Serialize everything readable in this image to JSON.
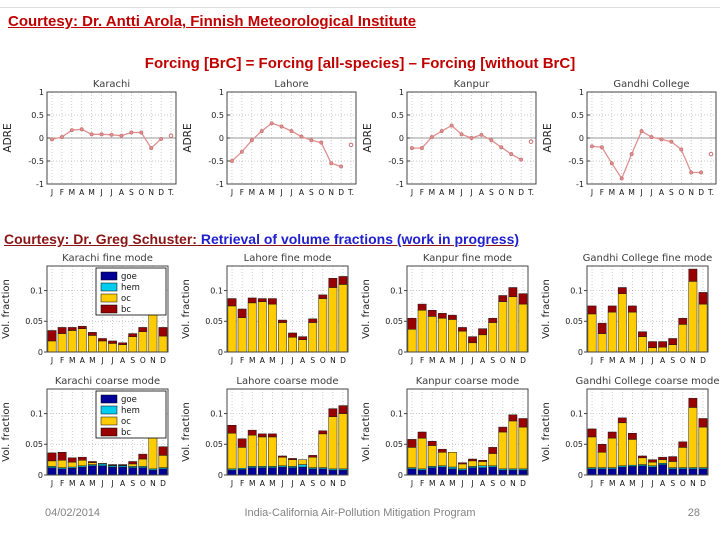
{
  "slide": {
    "header1": "Courtesy: Dr. Antti Arola, Finnish Meteorological Institute",
    "subtitle": "Forcing [BrC] = Forcing [all-species] – Forcing [without BrC]",
    "header2_red": "Courtesy: Dr. Greg Schuster:",
    "header2_blue": " Retrieval of volume fractions (work in progress)",
    "footer_date": "04/02/2014",
    "footer_program": "India-California Air-Pollution Mitigation Program",
    "footer_page": "28"
  },
  "colors": {
    "goe": "#000099",
    "hem": "#00ccee",
    "oc": "#ffcc00",
    "bc": "#990000",
    "line": "#e09090",
    "marker_edge": "#c87070",
    "grid": "#b5b5b5",
    "axis": "#444444",
    "zero_line": "#999999",
    "tick_text": "#222222",
    "title_text": "#3c3c3c"
  },
  "chart_data": [
    {
      "type": "line",
      "name": "karachi-adre",
      "title": "Karachi",
      "ylabel": "ADRE",
      "x_ticklabels": [
        "J",
        "F",
        "M",
        "A",
        "M",
        "J",
        "J",
        "A",
        "S",
        "O",
        "N",
        "D",
        "T."
      ],
      "ylim": [
        -1,
        1
      ],
      "yticks": [
        1,
        0.5,
        0,
        -0.5,
        -1
      ],
      "grid": true,
      "monthly_values": [
        -0.03,
        0.02,
        0.17,
        0.19,
        0.08,
        0.08,
        0.07,
        0.05,
        0.12,
        0.12,
        -0.22,
        -0.02
      ],
      "total_value": 0.05
    },
    {
      "type": "line",
      "name": "lahore-adre",
      "title": "Lahore",
      "ylabel": "ADRE",
      "x_ticklabels": [
        "J",
        "F",
        "M",
        "A",
        "M",
        "J",
        "J",
        "A",
        "S",
        "O",
        "N",
        "D",
        "T."
      ],
      "ylim": [
        -1,
        1
      ],
      "yticks": [
        1,
        0.5,
        0,
        -0.5,
        -1
      ],
      "grid": true,
      "monthly_values": [
        -0.5,
        -0.3,
        -0.05,
        0.15,
        0.32,
        0.25,
        0.15,
        0.03,
        -0.05,
        -0.1,
        -0.55,
        -0.62
      ],
      "total_value": -0.15
    },
    {
      "type": "line",
      "name": "kanpur-adre",
      "title": "Kanpur",
      "ylabel": "ADRE",
      "x_ticklabels": [
        "J",
        "F",
        "M",
        "A",
        "M",
        "J",
        "J",
        "A",
        "S",
        "O",
        "N",
        "D",
        "T."
      ],
      "ylim": [
        -1,
        1
      ],
      "yticks": [
        1,
        0.5,
        0,
        -0.5,
        -1
      ],
      "grid": true,
      "monthly_values": [
        -0.22,
        -0.22,
        0.02,
        0.15,
        0.27,
        0.08,
        0.0,
        0.07,
        -0.05,
        -0.2,
        -0.35,
        -0.47
      ],
      "total_value": -0.08
    },
    {
      "type": "line",
      "name": "gandhi-college-adre",
      "title": "Gandhi College",
      "ylabel": "ADRE",
      "x_ticklabels": [
        "J",
        "F",
        "M",
        "A",
        "M",
        "J",
        "J",
        "A",
        "S",
        "O",
        "N",
        "D",
        "T."
      ],
      "ylim": [
        -1,
        1
      ],
      "yticks": [
        1,
        0.5,
        0,
        -0.5,
        -1
      ],
      "grid": true,
      "monthly_values": [
        -0.18,
        -0.2,
        -0.55,
        -0.88,
        -0.35,
        0.15,
        0.02,
        -0.03,
        -0.08,
        -0.25,
        -0.75,
        -0.75
      ],
      "total_value": -0.35
    },
    {
      "type": "stacked-bar",
      "name": "karachi-fine-mode",
      "title": "Karachi fine mode",
      "ylabel": "Vol. fraction",
      "categories": [
        "J",
        "F",
        "M",
        "A",
        "M",
        "J",
        "J",
        "A",
        "S",
        "O",
        "N",
        "D"
      ],
      "ylim": [
        0,
        0.14
      ],
      "yticks": [
        0,
        0.05,
        0.1
      ],
      "grid": true,
      "legend": [
        "goe",
        "hem",
        "oc",
        "bc"
      ],
      "show_legend": true,
      "series": {
        "goe": [
          0,
          0,
          0,
          0,
          0,
          0,
          0,
          0,
          0,
          0,
          0,
          0
        ],
        "hem": [
          0,
          0,
          0,
          0,
          0,
          0,
          0,
          0,
          0,
          0,
          0,
          0
        ],
        "oc": [
          0.018,
          0.03,
          0.035,
          0.038,
          0.027,
          0.018,
          0.014,
          0.012,
          0.025,
          0.033,
          0.078,
          0.026
        ],
        "bc": [
          0.017,
          0.01,
          0.005,
          0.004,
          0.005,
          0.004,
          0.004,
          0.003,
          0.005,
          0.007,
          0.01,
          0.014
        ]
      }
    },
    {
      "type": "stacked-bar",
      "name": "lahore-fine-mode",
      "title": "Lahore fine mode",
      "ylabel": "Vol. fraction",
      "categories": [
        "J",
        "F",
        "M",
        "A",
        "M",
        "J",
        "J",
        "A",
        "S",
        "O",
        "N",
        "D"
      ],
      "ylim": [
        0,
        0.14
      ],
      "yticks": [
        0,
        0.05,
        0.1
      ],
      "grid": true,
      "legend": [
        "goe",
        "hem",
        "oc",
        "bc"
      ],
      "show_legend": false,
      "series": {
        "goe": [
          0,
          0,
          0,
          0,
          0,
          0,
          0,
          0,
          0,
          0,
          0,
          0
        ],
        "hem": [
          0,
          0,
          0,
          0,
          0,
          0,
          0,
          0,
          0,
          0,
          0,
          0
        ],
        "oc": [
          0.075,
          0.056,
          0.08,
          0.082,
          0.078,
          0.048,
          0.024,
          0.02,
          0.048,
          0.087,
          0.105,
          0.11
        ],
        "bc": [
          0.012,
          0.014,
          0.008,
          0.005,
          0.009,
          0.004,
          0.007,
          0.005,
          0.006,
          0.006,
          0.015,
          0.013
        ]
      }
    },
    {
      "type": "stacked-bar",
      "name": "kanpur-fine-mode",
      "title": "Kanpur fine mode",
      "ylabel": "Vol. fraction",
      "categories": [
        "J",
        "F",
        "M",
        "A",
        "M",
        "J",
        "J",
        "A",
        "S",
        "O",
        "N",
        "D"
      ],
      "ylim": [
        0,
        0.14
      ],
      "yticks": [
        0,
        0.05,
        0.1
      ],
      "grid": true,
      "legend": [
        "goe",
        "hem",
        "oc",
        "bc"
      ],
      "show_legend": false,
      "series": {
        "goe": [
          0,
          0,
          0,
          0,
          0,
          0,
          0,
          0,
          0,
          0,
          0,
          0
        ],
        "hem": [
          0,
          0,
          0,
          0,
          0,
          0,
          0,
          0,
          0,
          0,
          0,
          0
        ],
        "oc": [
          0.037,
          0.068,
          0.058,
          0.055,
          0.053,
          0.034,
          0.015,
          0.028,
          0.048,
          0.082,
          0.09,
          0.078
        ],
        "bc": [
          0.018,
          0.01,
          0.01,
          0.008,
          0.007,
          0.006,
          0.01,
          0.01,
          0.007,
          0.01,
          0.015,
          0.017
        ]
      }
    },
    {
      "type": "stacked-bar",
      "name": "gandhi-college-fine-mode",
      "title": "Gandhi College fine mode",
      "ylabel": "Vol. fraction",
      "categories": [
        "J",
        "F",
        "M",
        "A",
        "M",
        "J",
        "J",
        "A",
        "S",
        "O",
        "N",
        "D"
      ],
      "ylim": [
        0,
        0.14
      ],
      "yticks": [
        0,
        0.05,
        0.1
      ],
      "grid": true,
      "legend": [
        "goe",
        "hem",
        "oc",
        "bc"
      ],
      "show_legend": false,
      "series": {
        "goe": [
          0,
          0,
          0,
          0,
          0,
          0,
          0,
          0,
          0,
          0,
          0,
          0
        ],
        "hem": [
          0,
          0,
          0,
          0,
          0,
          0,
          0,
          0,
          0,
          0,
          0,
          0
        ],
        "oc": [
          0.062,
          0.03,
          0.065,
          0.095,
          0.065,
          0.025,
          0.007,
          0.008,
          0.012,
          0.045,
          0.115,
          0.078
        ],
        "bc": [
          0.013,
          0.017,
          0.01,
          0.01,
          0.01,
          0.008,
          0.01,
          0.009,
          0.01,
          0.01,
          0.02,
          0.019
        ]
      }
    },
    {
      "type": "stacked-bar",
      "name": "karachi-coarse-mode",
      "title": "Karachi coarse mode",
      "ylabel": "Vol. fraction",
      "categories": [
        "J",
        "F",
        "M",
        "A",
        "M",
        "J",
        "J",
        "A",
        "S",
        "O",
        "N",
        "D"
      ],
      "ylim": [
        0,
        0.14
      ],
      "yticks": [
        0,
        0.05,
        0.1
      ],
      "grid": true,
      "legend": [
        "goe",
        "hem",
        "oc",
        "bc"
      ],
      "show_legend": true,
      "series": {
        "goe": [
          0.012,
          0.01,
          0.011,
          0.013,
          0.015,
          0.015,
          0.013,
          0.013,
          0.012,
          0.012,
          0.008,
          0.01
        ],
        "hem": [
          0.002,
          0.002,
          0.002,
          0.002,
          0.002,
          0.003,
          0.002,
          0.002,
          0.002,
          0.002,
          0.002,
          0.002
        ],
        "oc": [
          0.009,
          0.012,
          0.008,
          0.009,
          0.003,
          0.001,
          0.001,
          0.001,
          0.004,
          0.012,
          0.058,
          0.02
        ],
        "bc": [
          0.013,
          0.013,
          0.007,
          0.005,
          0.002,
          0.0,
          0.001,
          0.001,
          0.004,
          0.008,
          0.01,
          0.014
        ]
      }
    },
    {
      "type": "stacked-bar",
      "name": "lahore-coarse-mode",
      "title": "Lahore coarse mode",
      "ylabel": "Vol. fraction",
      "categories": [
        "J",
        "F",
        "M",
        "A",
        "M",
        "J",
        "J",
        "A",
        "S",
        "O",
        "N",
        "D"
      ],
      "ylim": [
        0,
        0.14
      ],
      "yticks": [
        0,
        0.05,
        0.1
      ],
      "grid": true,
      "legend": [
        "goe",
        "hem",
        "oc",
        "bc"
      ],
      "show_legend": false,
      "series": {
        "goe": [
          0.008,
          0.009,
          0.012,
          0.012,
          0.012,
          0.013,
          0.012,
          0.013,
          0.01,
          0.01,
          0.008,
          0.008
        ],
        "hem": [
          0.002,
          0.002,
          0.002,
          0.002,
          0.002,
          0.002,
          0.002,
          0.004,
          0.002,
          0.002,
          0.002,
          0.002
        ],
        "oc": [
          0.058,
          0.034,
          0.051,
          0.048,
          0.048,
          0.014,
          0.011,
          0.008,
          0.017,
          0.055,
          0.085,
          0.09
        ],
        "bc": [
          0.013,
          0.014,
          0.008,
          0.005,
          0.005,
          0.002,
          0.002,
          0.0,
          0.003,
          0.005,
          0.013,
          0.013
        ]
      }
    },
    {
      "type": "stacked-bar",
      "name": "kanpur-coarse-mode",
      "title": "Kanpur coarse mode",
      "ylabel": "Vol. fraction",
      "categories": [
        "J",
        "F",
        "M",
        "A",
        "M",
        "J",
        "J",
        "A",
        "S",
        "O",
        "N",
        "D"
      ],
      "ylim": [
        0,
        0.14
      ],
      "yticks": [
        0,
        0.05,
        0.1
      ],
      "grid": true,
      "legend": [
        "goe",
        "hem",
        "oc",
        "bc"
      ],
      "show_legend": false,
      "series": {
        "goe": [
          0.01,
          0.008,
          0.012,
          0.013,
          0.01,
          0.008,
          0.012,
          0.012,
          0.013,
          0.008,
          0.008,
          0.008
        ],
        "hem": [
          0.002,
          0.002,
          0.002,
          0.002,
          0.003,
          0.002,
          0.002,
          0.003,
          0.002,
          0.002,
          0.002,
          0.002
        ],
        "oc": [
          0.033,
          0.05,
          0.034,
          0.022,
          0.024,
          0.008,
          0.009,
          0.007,
          0.02,
          0.06,
          0.078,
          0.068
        ],
        "bc": [
          0.013,
          0.01,
          0.007,
          0.005,
          0.0,
          0.002,
          0.003,
          0.002,
          0.01,
          0.008,
          0.01,
          0.014
        ]
      }
    },
    {
      "type": "stacked-bar",
      "name": "gandhi-college-coarse-mode",
      "title": "Gandhi College coarse mode",
      "ylabel": "Vol. fraction",
      "categories": [
        "J",
        "F",
        "M",
        "A",
        "M",
        "J",
        "J",
        "A",
        "S",
        "O",
        "N",
        "D"
      ],
      "ylim": [
        0,
        0.14
      ],
      "yticks": [
        0,
        0.05,
        0.1
      ],
      "grid": true,
      "legend": [
        "goe",
        "hem",
        "oc",
        "bc"
      ],
      "show_legend": false,
      "series": {
        "goe": [
          0.01,
          0.01,
          0.01,
          0.013,
          0.014,
          0.015,
          0.013,
          0.017,
          0.01,
          0.01,
          0.01,
          0.01
        ],
        "hem": [
          0.002,
          0.002,
          0.002,
          0.002,
          0.002,
          0.002,
          0.002,
          0.002,
          0.002,
          0.002,
          0.002,
          0.002
        ],
        "oc": [
          0.05,
          0.025,
          0.048,
          0.07,
          0.042,
          0.011,
          0.006,
          0.006,
          0.01,
          0.033,
          0.098,
          0.066
        ],
        "bc": [
          0.013,
          0.013,
          0.01,
          0.008,
          0.01,
          0.003,
          0.004,
          0.004,
          0.008,
          0.009,
          0.015,
          0.014
        ]
      }
    }
  ]
}
